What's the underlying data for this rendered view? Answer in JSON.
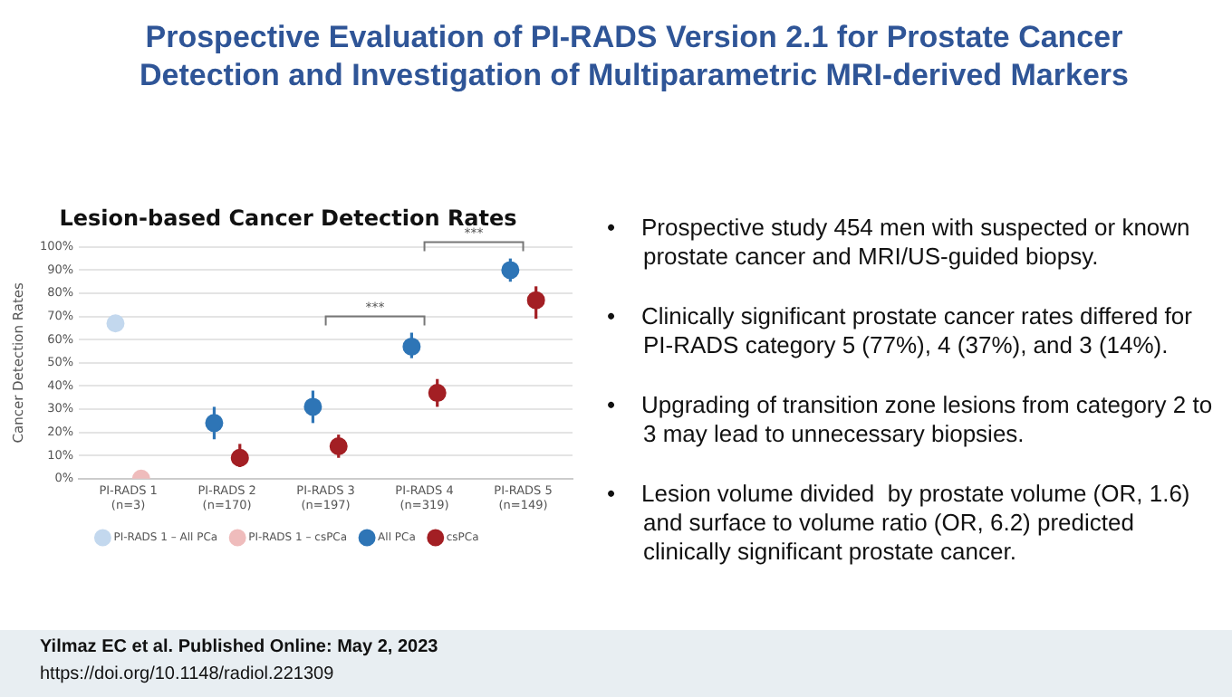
{
  "chart_data": {
    "type": "scatter",
    "title": "Prospective Evaluation of PI-RADS Version 2.1 for Prostate Cancer Detection and Investigation of Multiparametric MRI-derived Markers",
    "subtitle": "Lesion-based Cancer Detection Rates",
    "ylabel": "Cancer Detection Rates",
    "categories": [
      "PI-RADS 1\n(n=3)",
      "PI-RADS 2\n(n=170)",
      "PI-RADS 3\n(n=197)",
      "PI-RADS 4\n(n=319)",
      "PI-RADS 5\n(n=149)"
    ],
    "series": [
      {
        "name": "PI-RADS 1 – All PCa",
        "color": "#c3d8ee",
        "values": [
          67,
          null,
          null,
          null,
          null
        ]
      },
      {
        "name": "PI-RADS 1 – csPCa",
        "color": "#efbcbc",
        "values": [
          0,
          null,
          null,
          null,
          null
        ]
      },
      {
        "name": "All PCa",
        "color": "#2e75b6",
        "values": [
          null,
          24,
          31,
          57,
          90
        ],
        "errors": [
          null,
          [
            17,
            31
          ],
          [
            24,
            38
          ],
          [
            52,
            63
          ],
          [
            85,
            95
          ]
        ]
      },
      {
        "name": "csPCa",
        "color": "#a31f24",
        "values": [
          null,
          9,
          14,
          37,
          77
        ],
        "errors": [
          null,
          [
            5,
            15
          ],
          [
            9,
            19
          ],
          [
            31,
            43
          ],
          [
            69,
            83
          ]
        ]
      }
    ],
    "ylim": [
      0,
      100
    ],
    "yticks": [
      {
        "value": 0,
        "label": "0%"
      },
      {
        "value": 10,
        "label": "10%"
      },
      {
        "value": 20,
        "label": "20%"
      },
      {
        "value": 30,
        "label": "30%"
      },
      {
        "value": 40,
        "label": "40%"
      },
      {
        "value": 50,
        "label": "50%"
      },
      {
        "value": 60,
        "label": "60%"
      },
      {
        "value": 70,
        "label": "70%"
      },
      {
        "value": 80,
        "label": "80%"
      },
      {
        "value": 90,
        "label": "90%"
      },
      {
        "value": 100,
        "label": "100%"
      }
    ],
    "grid": "y",
    "legend": "bottom",
    "marker": "circle",
    "annotations": [
      "***",
      "***",
      "• Prospective study 454 men with suspected or known prostate cancer and MRI/US-guided biopsy.",
      "• Clinically significant prostate cancer rates differed for PI-RADS category 5 (77%), 4 (37%), and 3 (14%).",
      "• Upgrading of transition zone lesions from category 2 to 3 may lead to unnecessary biopsies.",
      "• Lesion volume divided  by prostate volume (OR, 1.6) and surface to volume ratio (OR, 6.2) predicted clinically significant prostate cancer.",
      "Yilmaz EC et al. Published Online: May 2, 2023",
      "https://doi.org/10.1148/radiol.221309"
    ]
  }
}
